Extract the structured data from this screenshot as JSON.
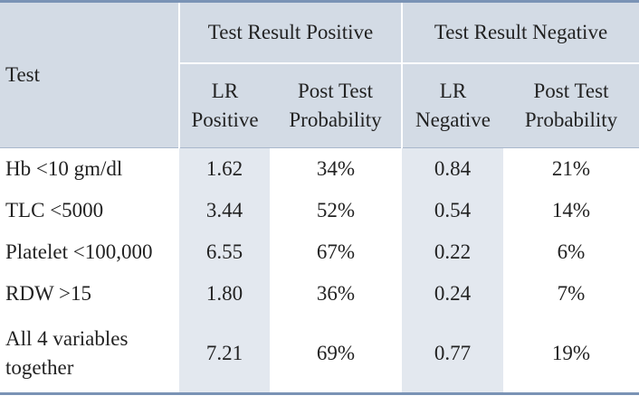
{
  "header": {
    "test": "Test",
    "group_positive": "Test Result Positive",
    "group_negative": "Test Result Negative",
    "lr_positive": [
      "LR",
      "Positive"
    ],
    "post_test_pos": [
      "Post Test",
      "Probability"
    ],
    "lr_negative": [
      "LR",
      "Negative"
    ],
    "post_test_neg": [
      "Post Test",
      "Probability"
    ]
  },
  "rows": [
    {
      "test": "Hb <10 gm/dl",
      "lr_pos": "1.62",
      "post_pos": "34%",
      "lr_neg": "0.84",
      "post_neg": "21%"
    },
    {
      "test": "TLC <5000",
      "lr_pos": "3.44",
      "post_pos": "52%",
      "lr_neg": "0.54",
      "post_neg": "14%"
    },
    {
      "test": "Platelet <100,000",
      "lr_pos": "6.55",
      "post_pos": "67%",
      "lr_neg": "0.22",
      "post_neg": "6%"
    },
    {
      "test": "RDW >15",
      "lr_pos": "1.80",
      "post_pos": "36%",
      "lr_neg": "0.24",
      "post_neg": "7%"
    },
    {
      "test_lines": [
        "All 4 variables",
        "together"
      ],
      "lr_pos": "7.21",
      "post_pos": "69%",
      "lr_neg": "0.77",
      "post_neg": "19%"
    }
  ],
  "colors": {
    "header_bg": "#d3dbe5",
    "shaded_column_bg": "#e3e8ef",
    "rule": "#7a93b5"
  }
}
